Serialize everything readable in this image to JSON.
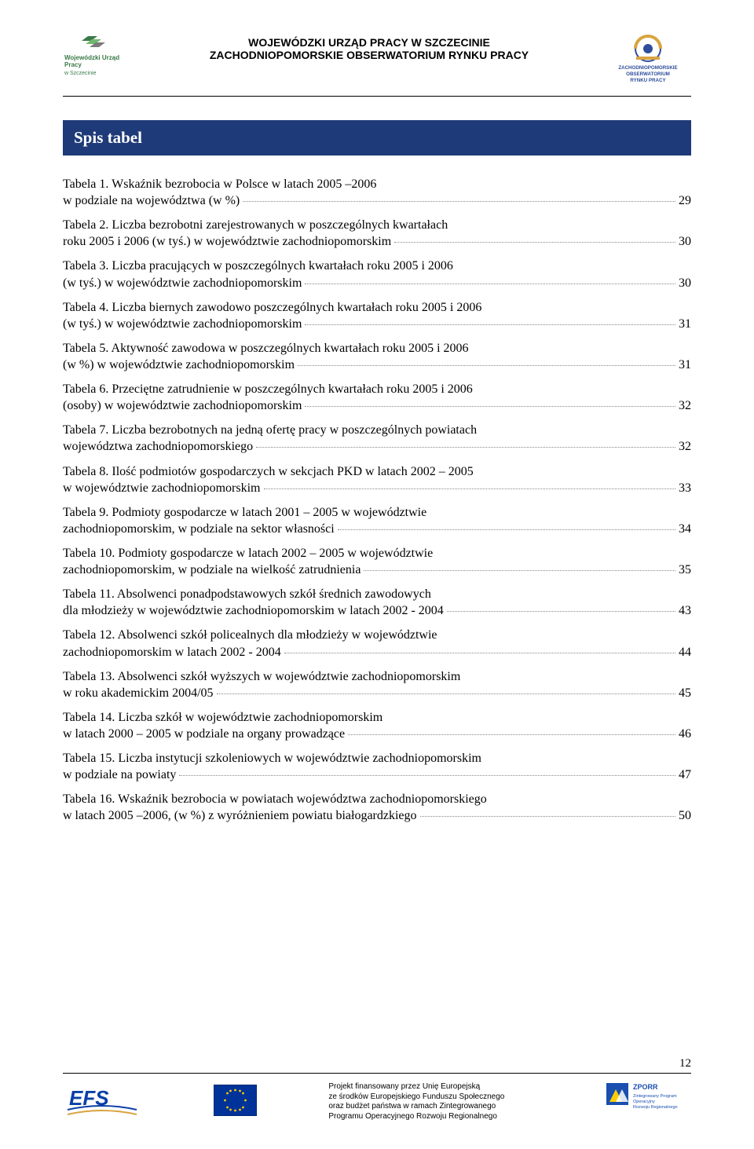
{
  "header": {
    "org_line1": "WOJEWÓDZKI URZĄD PRACY W SZCZECINIE",
    "org_line2": "ZACHODNIOPOMORSKIE OBSERWATORIUM RYNKU PRACY",
    "left_logo_caption_top": "Wojewódzki Urząd",
    "left_logo_caption_mid": "Pracy",
    "left_logo_caption_bot": "w Szczecinie",
    "right_logo_line1": "ZACHODNIOPOMORSKIE",
    "right_logo_line2": "OBSERWATORIUM",
    "right_logo_line3": "RYNKU PRACY"
  },
  "section_title": "Spis tabel",
  "entries": [
    {
      "pre": "Tabela 1. Wskaźnik bezrobocia w Polsce w latach 2005 –2006",
      "last": "w podziale na województwa (w %)",
      "page": "29"
    },
    {
      "pre": "Tabela 2. Liczba bezrobotni zarejestrowanych w poszczególnych kwartałach",
      "last": "roku 2005 i 2006 (w tyś.) w województwie zachodniopomorskim",
      "page": "30"
    },
    {
      "pre": "Tabela 3. Liczba pracujących w poszczególnych kwartałach roku 2005 i 2006",
      "last": "(w tyś.) w województwie zachodniopomorskim",
      "page": "30"
    },
    {
      "pre": "Tabela 4. Liczba biernych zawodowo poszczególnych kwartałach roku 2005 i 2006",
      "last": "(w tyś.) w województwie zachodniopomorskim",
      "page": "31"
    },
    {
      "pre": "Tabela 5. Aktywność zawodowa w poszczególnych kwartałach roku 2005 i 2006",
      "last": "(w %) w województwie zachodniopomorskim",
      "page": "31"
    },
    {
      "pre": "Tabela 6. Przeciętne zatrudnienie w poszczególnych kwartałach roku 2005 i 2006",
      "last": "(osoby) w województwie zachodniopomorskim",
      "page": "32"
    },
    {
      "pre": "Tabela 7. Liczba bezrobotnych na jedną ofertę pracy w poszczególnych powiatach",
      "last": "województwa zachodniopomorskiego",
      "page": "32"
    },
    {
      "pre": "Tabela 8. Ilość podmiotów gospodarczych w sekcjach PKD w latach 2002 – 2005",
      "last": "w województwie zachodniopomorskim",
      "page": "33"
    },
    {
      "pre": "Tabela 9. Podmioty gospodarcze w latach 2001 – 2005 w województwie",
      "last": "zachodniopomorskim, w podziale na sektor własności",
      "page": "34"
    },
    {
      "pre": "Tabela 10. Podmioty gospodarcze w latach 2002 – 2005 w województwie",
      "last": "zachodniopomorskim, w podziale na wielkość zatrudnienia",
      "page": "35"
    },
    {
      "pre": "Tabela 11. Absolwenci ponadpodstawowych szkół średnich zawodowych",
      "last": "dla młodzieży w  województwie zachodniopomorskim w latach 2002 - 2004",
      "page": "43"
    },
    {
      "pre": "Tabela 12. Absolwenci szkół policealnych dla młodzieży w województwie",
      "last": "zachodniopomorskim w latach 2002 - 2004",
      "page": "44"
    },
    {
      "pre": "Tabela 13. Absolwenci szkół wyższych w województwie zachodniopomorskim",
      "last": "w roku akademickim 2004/05",
      "page": "45"
    },
    {
      "pre": "Tabela 14. Liczba szkół w województwie zachodniopomorskim",
      "last": "w latach 2000 – 2005 w podziale na organy prowadzące",
      "page": "46"
    },
    {
      "pre": "Tabela 15. Liczba instytucji szkoleniowych w województwie zachodniopomorskim",
      "last": "w podziale na powiaty",
      "page": "47"
    },
    {
      "pre": "Tabela 16. Wskaźnik bezrobocia w powiatach województwa zachodniopomorskiego",
      "last": "w latach 2005 –2006, (w %) z wyróżnieniem powiatu białogardzkiego",
      "page": "50"
    }
  ],
  "footer": {
    "text_l1": "Projekt finansowany przez Unię Europejską",
    "text_l2": "ze środków Europejskiego Funduszu Społecznego",
    "text_l3": "oraz budżet państwa w ramach Zintegrowanego",
    "text_l4": "Programu Operacyjnego Rozwoju Regionalnego",
    "zporr_line1": "ZPORR",
    "zporr_line2": "Zintegrowany Program",
    "zporr_line3": "Operacyjny",
    "zporr_line4": "Rozwoju Regionalnego",
    "page_number": "12"
  },
  "colors": {
    "title_bar_bg": "#1f3a78",
    "title_bar_fg": "#ffffff",
    "rule": "#000000",
    "leader": "#888888",
    "wup_green_dark": "#3a7a47",
    "wup_green_light": "#6fb96f",
    "wup_grey": "#7a7a7a",
    "obs_blue": "#2e4d9b",
    "obs_gold": "#d9a441",
    "eu_blue": "#003399",
    "eu_gold": "#ffcc00",
    "efs_blue": "#0a3fa8",
    "zporr_blue": "#1a4fb0"
  }
}
